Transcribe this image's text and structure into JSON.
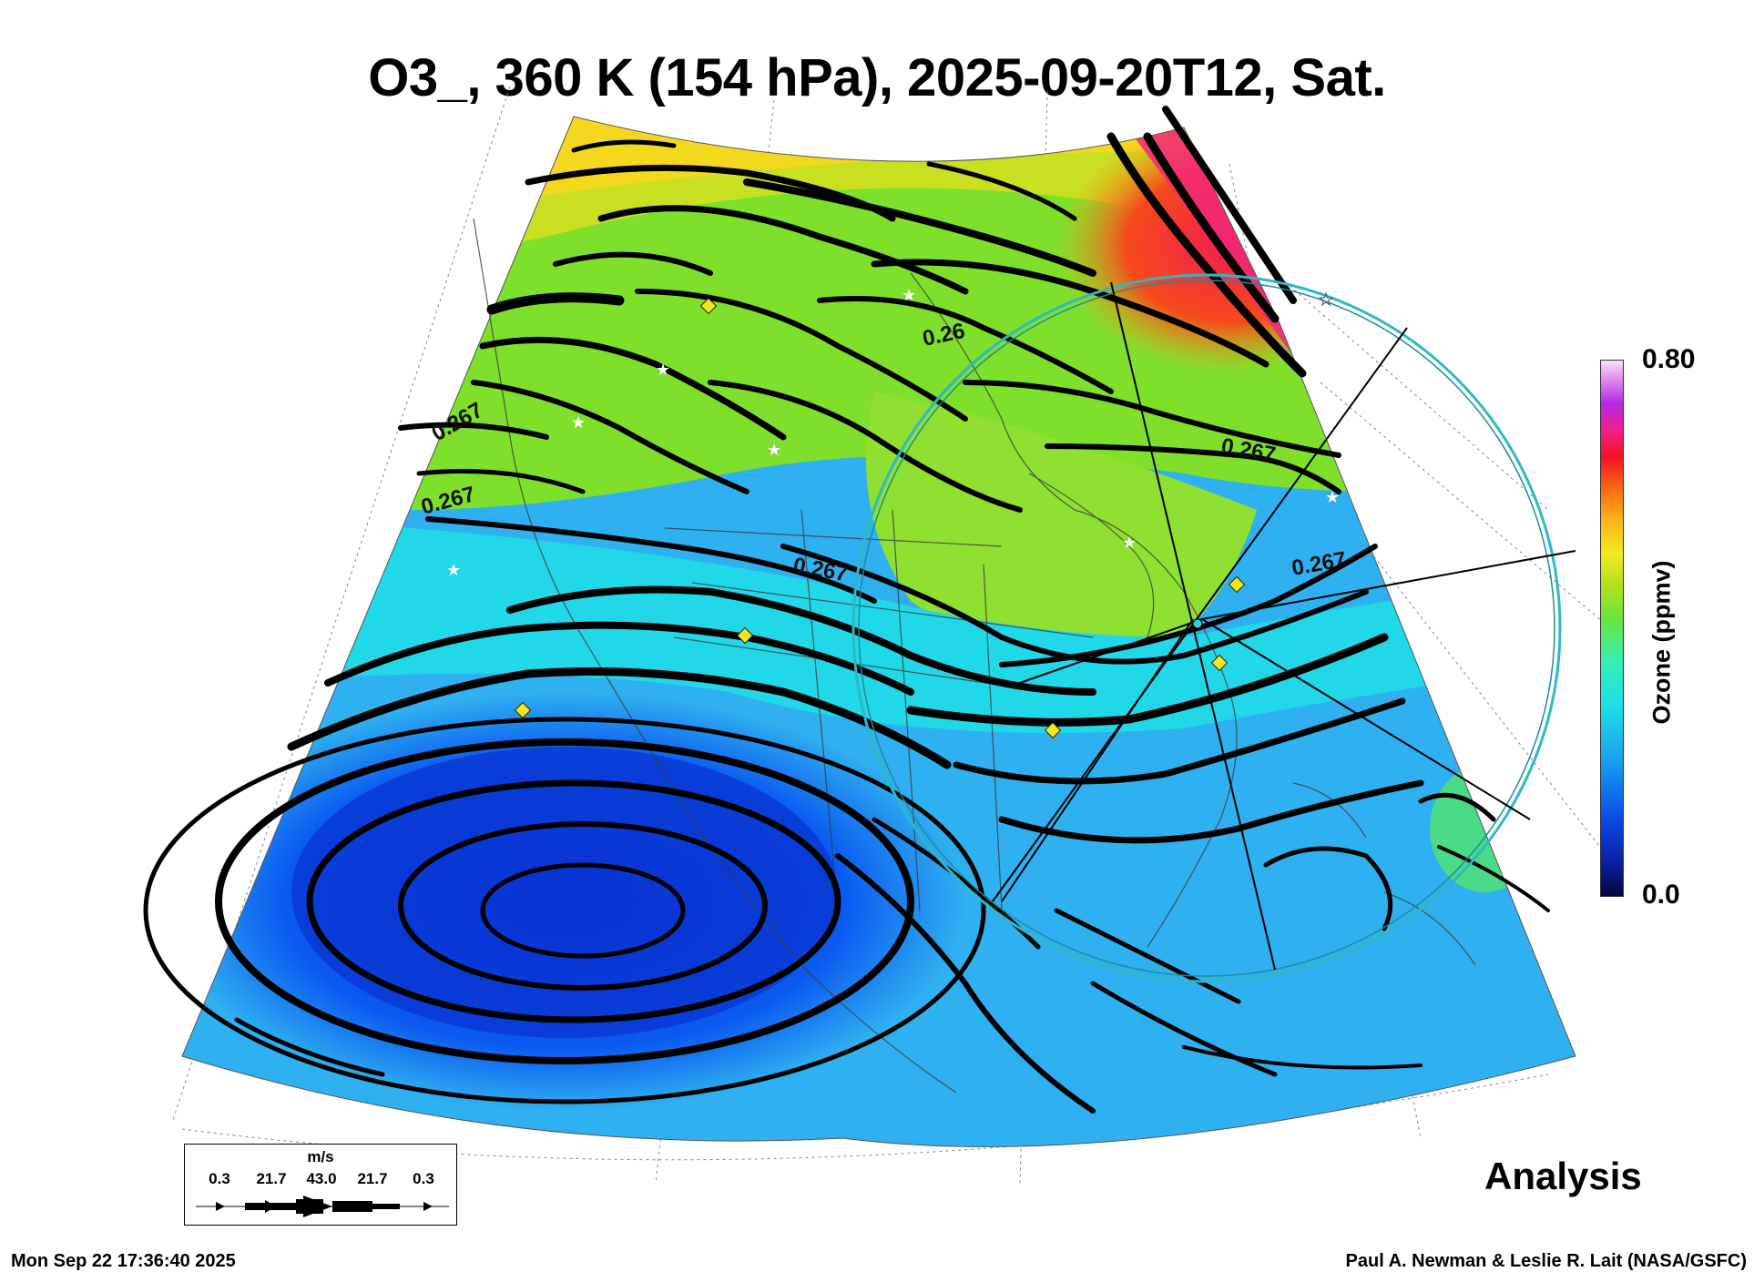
{
  "title": "O3_, 360 K (154 hPa), 2025-09-20T12, Sat.",
  "contour_labels": [
    "0.267",
    "0.267",
    "0.267",
    "0.267",
    "0.267",
    "0.26"
  ],
  "colorbar": {
    "max_label": "0.80",
    "min_label": "0.0",
    "label": "Ozone (ppmv)",
    "range": [
      0.0,
      0.8
    ]
  },
  "wind_legend": {
    "unit": "m/s",
    "ticks": [
      "0.3",
      "21.7",
      "43.0",
      "21.7",
      "0.3"
    ]
  },
  "analysis_label": "Analysis",
  "timestamp": "Mon Sep 22 17:36:40 2025",
  "credit": "Paul A. Newman & Leslie R. Lait (NASA/GSFC)",
  "colors": {
    "low_ozone": "#0a48e6",
    "mid_ozone": "#6ae63a",
    "high_ozone": "#f0141e",
    "streamline": "#000000",
    "ring": "#2fb8c4",
    "marker_diamond": "#f5e61a",
    "marker_star": "#ffffff"
  }
}
